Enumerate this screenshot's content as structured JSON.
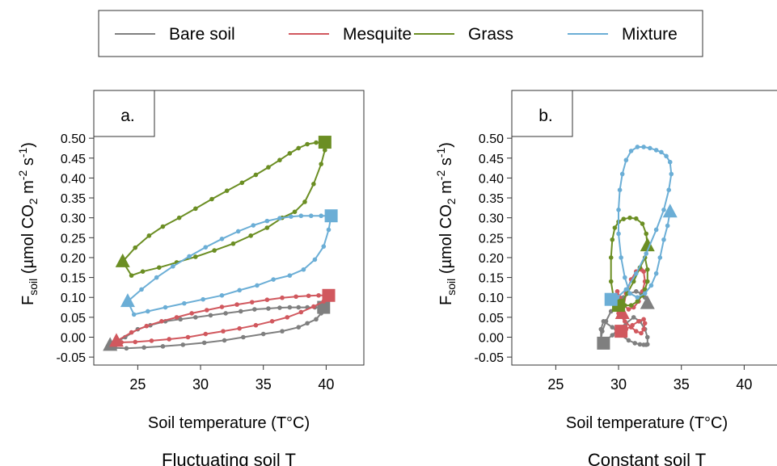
{
  "legend": {
    "placement": "top",
    "items": [
      {
        "label": "Bare soil",
        "color": "#7f7f7f"
      },
      {
        "label": "Mesquite",
        "color": "#d1585e"
      },
      {
        "label": "Grass",
        "color": "#6b8e23"
      },
      {
        "label": "Mixture",
        "color": "#6baed6"
      }
    ]
  },
  "chart_data": [
    {
      "type": "line",
      "panel_label": "a.",
      "caption": "Fluctuating soil T",
      "xlabel": "Soil temperature (T°C)",
      "ylabel": {
        "main": "F",
        "sub": "soil",
        "rest1": " (µmol CO",
        "sub2": "2",
        "rest2": " m",
        "sup1": "-2",
        "rest3": " s",
        "sup2": "-1",
        "rest4": ")"
      },
      "xlim": [
        21.5,
        43
      ],
      "ylim": [
        -0.07,
        0.62
      ],
      "xticks": [
        25,
        30,
        35,
        40
      ],
      "yticks": [
        -0.05,
        0.0,
        0.05,
        0.1,
        0.15,
        0.2,
        0.25,
        0.3,
        0.35,
        0.4,
        0.45,
        0.5
      ],
      "ytick_labels": [
        "-0.05",
        "0.00",
        "0.05",
        "0.10",
        "0.15",
        "0.20",
        "0.25",
        "0.30",
        "0.35",
        "0.40",
        "0.45",
        "0.50"
      ],
      "markers": {
        "start": "triangle",
        "end": "square"
      },
      "series": [
        {
          "name": "Bare soil",
          "color": "#7f7f7f",
          "start": [
            22.8,
            -0.02
          ],
          "end": [
            39.8,
            0.075
          ],
          "x": [
            22.8,
            24,
            25,
            26,
            27.2,
            28.4,
            29.6,
            30.8,
            32,
            33.2,
            34.3,
            35.4,
            36.3,
            37.1,
            37.8,
            38.5,
            39.1,
            39.5,
            39.8,
            39.6,
            39.2,
            38.5,
            37.8,
            36.5,
            35,
            33.4,
            31.9,
            30.3,
            28.6,
            27,
            25.5,
            24.1,
            23.2,
            22.8
          ],
          "y": [
            -0.02,
            0.0,
            0.02,
            0.03,
            0.04,
            0.045,
            0.05,
            0.055,
            0.06,
            0.065,
            0.07,
            0.072,
            0.074,
            0.075,
            0.075,
            0.075,
            0.075,
            0.075,
            0.075,
            0.06,
            0.045,
            0.035,
            0.025,
            0.015,
            0.008,
            0.0,
            -0.008,
            -0.014,
            -0.019,
            -0.023,
            -0.026,
            -0.028,
            -0.027,
            -0.02
          ]
        },
        {
          "name": "Mesquite",
          "color": "#d1585e",
          "start": [
            23.3,
            -0.01
          ],
          "end": [
            40.2,
            0.105
          ],
          "x": [
            23.3,
            24.5,
            25.7,
            26.9,
            28.1,
            29.3,
            30.5,
            31.7,
            32.9,
            34.1,
            35.3,
            36.5,
            37.6,
            38.6,
            39.4,
            40.2,
            39.8,
            39,
            38,
            36.9,
            35.7,
            34.4,
            33.1,
            31.8,
            30.4,
            29,
            27.5,
            26.1,
            24.8,
            23.7,
            23.3
          ],
          "y": [
            -0.01,
            0.012,
            0.028,
            0.04,
            0.05,
            0.06,
            0.068,
            0.076,
            0.082,
            0.088,
            0.094,
            0.099,
            0.102,
            0.104,
            0.105,
            0.105,
            0.09,
            0.077,
            0.063,
            0.05,
            0.04,
            0.03,
            0.022,
            0.015,
            0.008,
            0.0,
            -0.005,
            -0.009,
            -0.012,
            -0.013,
            -0.01
          ]
        },
        {
          "name": "Grass",
          "color": "#6b8e23",
          "start": [
            23.8,
            0.19
          ],
          "end": [
            39.9,
            0.49
          ],
          "x": [
            23.8,
            24.8,
            25.9,
            27,
            28.3,
            29.6,
            30.9,
            32.1,
            33.3,
            34.4,
            35.4,
            36.3,
            37.1,
            37.8,
            38.5,
            39.2,
            39.9,
            39.9,
            39.6,
            39,
            38.3,
            37.5,
            36.5,
            35.3,
            34,
            32.6,
            31.1,
            29.6,
            28.1,
            26.7,
            25.4,
            24.5,
            23.8
          ],
          "y": [
            0.19,
            0.225,
            0.255,
            0.278,
            0.3,
            0.323,
            0.347,
            0.368,
            0.388,
            0.408,
            0.427,
            0.445,
            0.462,
            0.475,
            0.485,
            0.489,
            0.49,
            0.47,
            0.435,
            0.385,
            0.34,
            0.315,
            0.3,
            0.275,
            0.255,
            0.235,
            0.218,
            0.202,
            0.188,
            0.175,
            0.165,
            0.155,
            0.19
          ]
        },
        {
          "name": "Mixture",
          "color": "#6baed6",
          "start": [
            24.2,
            0.09
          ],
          "end": [
            40.4,
            0.305
          ],
          "x": [
            24.2,
            25.3,
            26.5,
            27.8,
            29.1,
            30.4,
            31.7,
            33,
            34.2,
            35.3,
            36.3,
            37.2,
            38,
            38.8,
            39.6,
            40.4,
            40.2,
            39.8,
            39.1,
            38.2,
            37.1,
            35.8,
            34.5,
            33.1,
            31.7,
            30.2,
            28.7,
            27.2,
            25.8,
            24.7,
            24.2
          ],
          "y": [
            0.09,
            0.12,
            0.15,
            0.178,
            0.203,
            0.226,
            0.247,
            0.266,
            0.281,
            0.292,
            0.299,
            0.303,
            0.305,
            0.305,
            0.305,
            0.305,
            0.27,
            0.228,
            0.195,
            0.17,
            0.155,
            0.145,
            0.13,
            0.118,
            0.105,
            0.095,
            0.085,
            0.075,
            0.065,
            0.057,
            0.09
          ]
        }
      ]
    },
    {
      "type": "line",
      "panel_label": "b.",
      "caption": "Constant soil T",
      "xlabel": "Soil temperature (T°C)",
      "ylabel": {
        "main": "F",
        "sub": "soil",
        "rest1": " (µmol CO",
        "sub2": "2",
        "rest2": " m",
        "sup1": "-2",
        "rest3": " s",
        "sup2": "-1",
        "rest4": ")"
      },
      "xlim": [
        21.5,
        43
      ],
      "ylim": [
        -0.07,
        0.62
      ],
      "xticks": [
        25,
        30,
        35,
        40
      ],
      "yticks": [
        -0.05,
        0.0,
        0.05,
        0.1,
        0.15,
        0.2,
        0.25,
        0.3,
        0.35,
        0.4,
        0.45,
        0.5
      ],
      "ytick_labels": [
        "-0.05",
        "0.00",
        "0.05",
        "0.10",
        "0.15",
        "0.20",
        "0.25",
        "0.30",
        "0.35",
        "0.40",
        "0.45",
        "0.50"
      ],
      "markers": {
        "start": "triangle",
        "end": "square"
      },
      "series": [
        {
          "name": "Bare soil",
          "color": "#7f7f7f",
          "start": [
            32.3,
            0.085
          ],
          "end": [
            28.8,
            -0.015
          ],
          "x": [
            32.3,
            32.1,
            31.8,
            31.4,
            30.9,
            30.4,
            29.9,
            29.4,
            29,
            28.7,
            28.6,
            28.6,
            28.8,
            29.5,
            30.2,
            30.8,
            31.3,
            31.7,
            32,
            32.2,
            32.3,
            32.3,
            32.1,
            31.7,
            31.2,
            30.6,
            30,
            29.5,
            29.1,
            28.8
          ],
          "y": [
            0.085,
            0.1,
            0.11,
            0.115,
            0.11,
            0.1,
            0.085,
            0.065,
            0.04,
            0.015,
            -0.005,
            0.02,
            0.04,
            0.025,
            0.005,
            -0.008,
            -0.015,
            -0.018,
            -0.019,
            -0.019,
            -0.018,
            0.0,
            0.02,
            0.04,
            0.05,
            0.035,
            0.02,
            0.005,
            -0.005,
            -0.015
          ]
        },
        {
          "name": "Mesquite",
          "color": "#d1585e",
          "start": [
            30.3,
            0.06
          ],
          "end": [
            30.2,
            0.015
          ],
          "x": [
            30.3,
            30.6,
            31,
            31.4,
            31.8,
            32,
            32.1,
            31.9,
            31.6,
            31.2,
            30.8,
            30.4,
            30.1,
            29.9,
            29.8,
            30,
            30.5,
            31,
            31.4,
            31.8,
            32,
            32.1,
            32,
            31.6,
            31.1,
            30.6,
            30.2
          ],
          "y": [
            0.06,
            0.11,
            0.145,
            0.165,
            0.17,
            0.165,
            0.14,
            0.115,
            0.09,
            0.075,
            0.07,
            0.08,
            0.1,
            0.115,
            0.09,
            0.06,
            0.04,
            0.025,
            0.015,
            0.01,
            0.02,
            0.035,
            0.045,
            0.04,
            0.03,
            0.02,
            0.015
          ]
        },
        {
          "name": "Grass",
          "color": "#6b8e23",
          "start": [
            32.3,
            0.23
          ],
          "end": [
            30.0,
            0.08
          ],
          "x": [
            32.3,
            32.2,
            31.9,
            31.4,
            30.9,
            30.4,
            30,
            29.7,
            29.5,
            29.4,
            29.4,
            29.6,
            30,
            30.5,
            31,
            31.5,
            31.9,
            32.1,
            32.3,
            32.3,
            32.1,
            31.7,
            31.2,
            30.7,
            30.3,
            30
          ],
          "y": [
            0.23,
            0.26,
            0.285,
            0.298,
            0.3,
            0.297,
            0.29,
            0.275,
            0.245,
            0.2,
            0.14,
            0.1,
            0.085,
            0.08,
            0.08,
            0.09,
            0.105,
            0.12,
            0.14,
            0.17,
            0.2,
            0.175,
            0.14,
            0.11,
            0.09,
            0.08
          ]
        },
        {
          "name": "Mixture",
          "color": "#6baed6",
          "start": [
            34.1,
            0.315
          ],
          "end": [
            29.4,
            0.095
          ],
          "x": [
            34.1,
            33.9,
            33.6,
            33.3,
            33,
            32.6,
            32.1,
            31.5,
            30.9,
            30.5,
            30.2,
            30,
            30,
            30.1,
            30.3,
            30.6,
            31,
            31.5,
            32,
            32.5,
            33,
            33.4,
            33.8,
            34.1,
            34.2,
            34,
            33.6,
            33,
            32.2,
            31.4,
            30.6,
            29.9,
            29.4
          ],
          "y": [
            0.315,
            0.28,
            0.245,
            0.2,
            0.16,
            0.13,
            0.11,
            0.1,
            0.11,
            0.15,
            0.2,
            0.26,
            0.32,
            0.37,
            0.41,
            0.445,
            0.468,
            0.478,
            0.478,
            0.475,
            0.47,
            0.465,
            0.455,
            0.44,
            0.41,
            0.37,
            0.32,
            0.27,
            0.21,
            0.16,
            0.12,
            0.1,
            0.095
          ]
        }
      ]
    }
  ]
}
